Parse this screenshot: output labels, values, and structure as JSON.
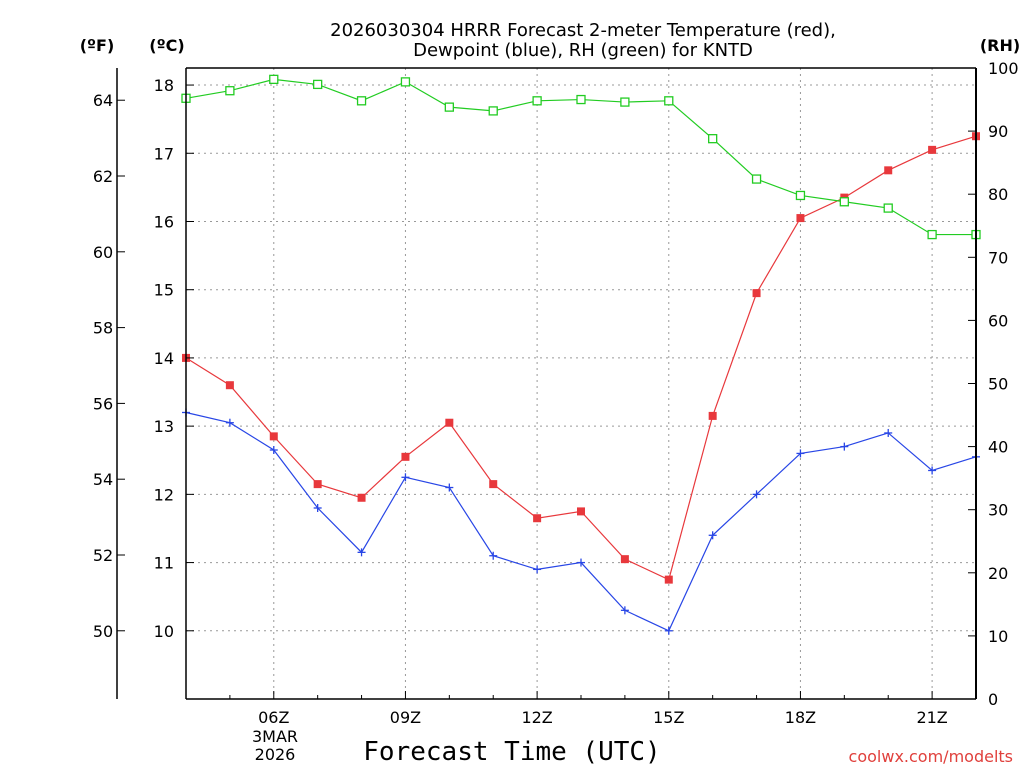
{
  "chart_data": {
    "type": "line",
    "title_line1": "2026030304 HRRR Forecast 2-meter Temperature (red),",
    "title_line2": "Dewpoint (blue), RH (green) for KNTD",
    "xlabel": "Forecast Time (UTC)",
    "credit": "coolwx.com/modelts",
    "unit_f": "(ºF)",
    "unit_c": "(ºC)",
    "unit_rh": "(RH)",
    "date_line1": "3MAR",
    "date_line2": "2026",
    "x_hours": [
      4,
      5,
      6,
      7,
      8,
      9,
      10,
      11,
      12,
      13,
      14,
      15,
      16,
      17,
      18,
      19,
      20,
      21,
      22
    ],
    "xlim": [
      4,
      22
    ],
    "x_ticks": [
      {
        "h": 6,
        "label": "06Z"
      },
      {
        "h": 9,
        "label": "09Z"
      },
      {
        "h": 12,
        "label": "12Z"
      },
      {
        "h": 15,
        "label": "15Z"
      },
      {
        "h": 18,
        "label": "18Z"
      },
      {
        "h": 21,
        "label": "21Z"
      }
    ],
    "ylim_c": [
      9.0,
      18.25
    ],
    "y_ticks_c": [
      10,
      11,
      12,
      13,
      14,
      15,
      16,
      17,
      18
    ],
    "y_ticks_f": [
      50,
      52,
      54,
      56,
      58,
      60,
      62,
      64
    ],
    "ylim_rh": [
      0,
      100
    ],
    "y_ticks_rh": [
      0,
      10,
      20,
      30,
      40,
      50,
      60,
      70,
      80,
      90,
      100
    ],
    "colors": {
      "temperature": "#e8383c",
      "dewpoint": "#2846e6",
      "rh": "#22cc22",
      "grid": "#999999"
    },
    "series": [
      {
        "name": "Temperature",
        "axis": "C",
        "marker": "square",
        "color": "#e8383c",
        "values": [
          14.0,
          13.6,
          12.85,
          12.15,
          11.95,
          12.55,
          13.05,
          12.15,
          11.65,
          11.75,
          11.05,
          10.75,
          13.15,
          14.95,
          16.05,
          16.35,
          16.75,
          17.05,
          17.25
        ]
      },
      {
        "name": "Dewpoint",
        "axis": "C",
        "marker": "plus",
        "color": "#2846e6",
        "values": [
          13.2,
          13.05,
          12.65,
          11.8,
          11.15,
          12.25,
          12.1,
          11.1,
          10.9,
          11.0,
          10.3,
          10.0,
          11.4,
          12.0,
          12.6,
          12.7,
          12.9,
          12.35,
          12.55
        ]
      },
      {
        "name": "RH",
        "axis": "RH",
        "marker": "open-square",
        "color": "#22cc22",
        "values": [
          95.2,
          96.4,
          98.2,
          97.4,
          94.8,
          97.8,
          93.8,
          93.2,
          94.8,
          95.0,
          94.6,
          94.8,
          88.8,
          82.4,
          79.8,
          78.8,
          77.8,
          73.6,
          73.6
        ]
      }
    ]
  }
}
